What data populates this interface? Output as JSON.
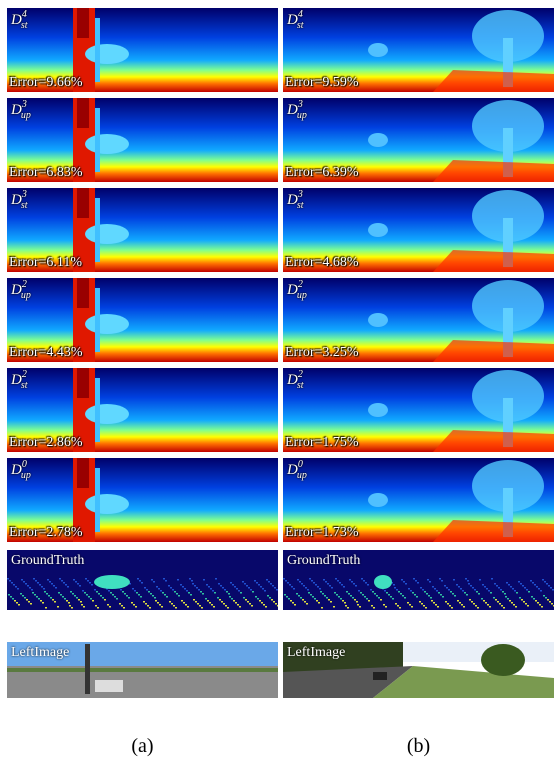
{
  "columns": [
    {
      "caption": "(a)",
      "panels": [
        {
          "symbol": "D",
          "sup": "4",
          "sub": "st",
          "error": "Error=9.66%"
        },
        {
          "symbol": "D",
          "sup": "3",
          "sub": "up",
          "error": "Error=6.83%"
        },
        {
          "symbol": "D",
          "sup": "3",
          "sub": "st",
          "error": "Error=6.11%"
        },
        {
          "symbol": "D",
          "sup": "2",
          "sub": "up",
          "error": "Error=4.43%"
        },
        {
          "symbol": "D",
          "sup": "2",
          "sub": "st",
          "error": "Error=2.86%"
        },
        {
          "symbol": "D",
          "sup": "0",
          "sub": "up",
          "error": "Error=2.78%"
        }
      ],
      "ground_truth": "GroundTruth",
      "left_image": "LeftImage"
    },
    {
      "caption": "(b)",
      "panels": [
        {
          "symbol": "D",
          "sup": "4",
          "sub": "st",
          "error": "Error=9.59%"
        },
        {
          "symbol": "D",
          "sup": "3",
          "sub": "up",
          "error": "Error=6.39%"
        },
        {
          "symbol": "D",
          "sup": "3",
          "sub": "st",
          "error": "Error=4.68%"
        },
        {
          "symbol": "D",
          "sup": "2",
          "sub": "up",
          "error": "Error=3.25%"
        },
        {
          "symbol": "D",
          "sup": "2",
          "sub": "st",
          "error": "Error=1.75%"
        },
        {
          "symbol": "D",
          "sup": "0",
          "sub": "up",
          "error": "Error=1.73%"
        }
      ],
      "ground_truth": "GroundTruth",
      "left_image": "LeftImage"
    }
  ]
}
